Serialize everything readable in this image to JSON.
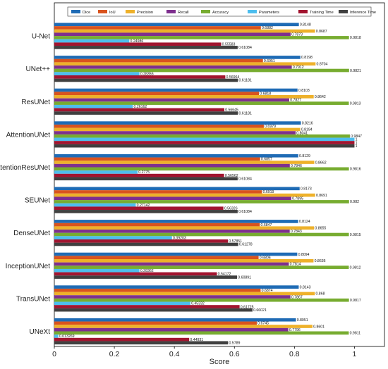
{
  "chart_data": {
    "type": "bar",
    "orientation": "horizontal",
    "title": "",
    "xlabel": "Score",
    "ylabel": "",
    "xlim": [
      0,
      1.1
    ],
    "x_ticks": [
      "0",
      "0.2",
      "0.4",
      "0.6",
      "0.8",
      "1"
    ],
    "x_tick_values": [
      0,
      0.2,
      0.4,
      0.6,
      0.8,
      1
    ],
    "grid": false,
    "legend_position": "top",
    "categories": [
      "U-Net",
      "UNet++",
      "ResUNet",
      "AttentionUNet",
      "AttentionResUNet",
      "SEUNet",
      "DenseUNet",
      "InceptionUNet",
      "TransUNet",
      "UNeXt"
    ],
    "series": [
      {
        "name": "Dice",
        "color": "#1f6bb5",
        "values": [
          0.8148,
          0.8198,
          0.8103,
          0.8216,
          0.8129,
          0.8173,
          0.8124,
          0.8094,
          0.8143,
          0.8051
        ],
        "labels": [
          "0.8148",
          "0.8198",
          "0.8103",
          "0.8216",
          "0.8129",
          "0.8173",
          "0.8124",
          "0.8094",
          "0.8143",
          "0.8051"
        ]
      },
      {
        "name": "IoU",
        "color": "#d9531e",
        "values": [
          0.6882,
          0.6951,
          0.6818,
          0.6979,
          0.6857,
          0.6919,
          0.6847,
          0.6806,
          0.6874,
          0.6745
        ],
        "labels": [
          "0.6882",
          "0.6951",
          "0.6818",
          "0.6979",
          "0.6857",
          "0.6919",
          "0.6847",
          "0.6806",
          "0.6874",
          "0.6745"
        ]
      },
      {
        "name": "Precision",
        "color": "#eeb12a",
        "values": [
          0.8687,
          0.8704,
          0.8642,
          0.8194,
          0.8662,
          0.8691,
          0.8655,
          0.8636,
          0.868,
          0.8601
        ],
        "labels": [
          "0.8687",
          "0.8704",
          "0.8642",
          "0.8194",
          "0.8662",
          "0.8691",
          "0.8655",
          "0.8636",
          "0.868",
          "0.8601"
        ]
      },
      {
        "name": "Recall",
        "color": "#7e2f8e",
        "values": [
          0.7873,
          0.7912,
          0.7827,
          0.8041,
          0.7846,
          0.7895,
          0.7843,
          0.7814,
          0.7867,
          0.7796
        ],
        "labels": [
          "0.7873",
          "0.7912",
          "0.7827",
          "0.8041",
          "0.7846",
          "0.7895",
          "0.7843",
          "0.7814",
          "0.7867",
          "0.7796"
        ]
      },
      {
        "name": "Accuracy",
        "color": "#77ac30",
        "values": [
          0.9818,
          0.9821,
          0.9813,
          0.9847,
          0.9816,
          0.982,
          0.9815,
          0.9812,
          0.9817,
          0.9811
        ],
        "labels": [
          "0.9818",
          "0.9821",
          "0.9813",
          "0.9847",
          "0.9816",
          "0.982",
          "0.9815",
          "0.9812",
          "0.9817",
          "0.9811"
        ]
      },
      {
        "name": "Parameters",
        "color": "#4dbeee",
        "values": [
          0.24986,
          0.28356,
          0.26162,
          1,
          0.2775,
          0.27142,
          0.39203,
          0.28362,
          0.45332,
          0.013269
        ],
        "labels": [
          "0.24986",
          "0.28356",
          "0.26162",
          "1",
          "0.2775",
          "0.27142",
          "0.39203",
          "0.28362",
          "0.45332",
          "0.013269"
        ]
      },
      {
        "name": "Training Time",
        "color": "#a2142f",
        "values": [
          0.55583,
          0.56964,
          0.56645,
          1,
          0.56562,
          0.56326,
          0.57851,
          0.54172,
          0.61725,
          0.44931
        ],
        "labels": [
          "0.55583",
          "0.56964",
          "0.56645",
          "1",
          "0.56562",
          "0.56326",
          "0.57851",
          "0.54172",
          "0.61725",
          "0.44931"
        ]
      },
      {
        "name": "Inference Time",
        "color": "#404040",
        "values": [
          0.61084,
          0.61181,
          0.61181,
          1,
          0.61084,
          0.61084,
          0.61278,
          0.60891,
          0.66021,
          0.5789
        ],
        "labels": [
          "0.61084",
          "0.61181",
          "0.61181",
          "1",
          "0.61084",
          "0.61084",
          "0.61278",
          "0.60891",
          "0.66021",
          "0.5789"
        ]
      }
    ]
  }
}
